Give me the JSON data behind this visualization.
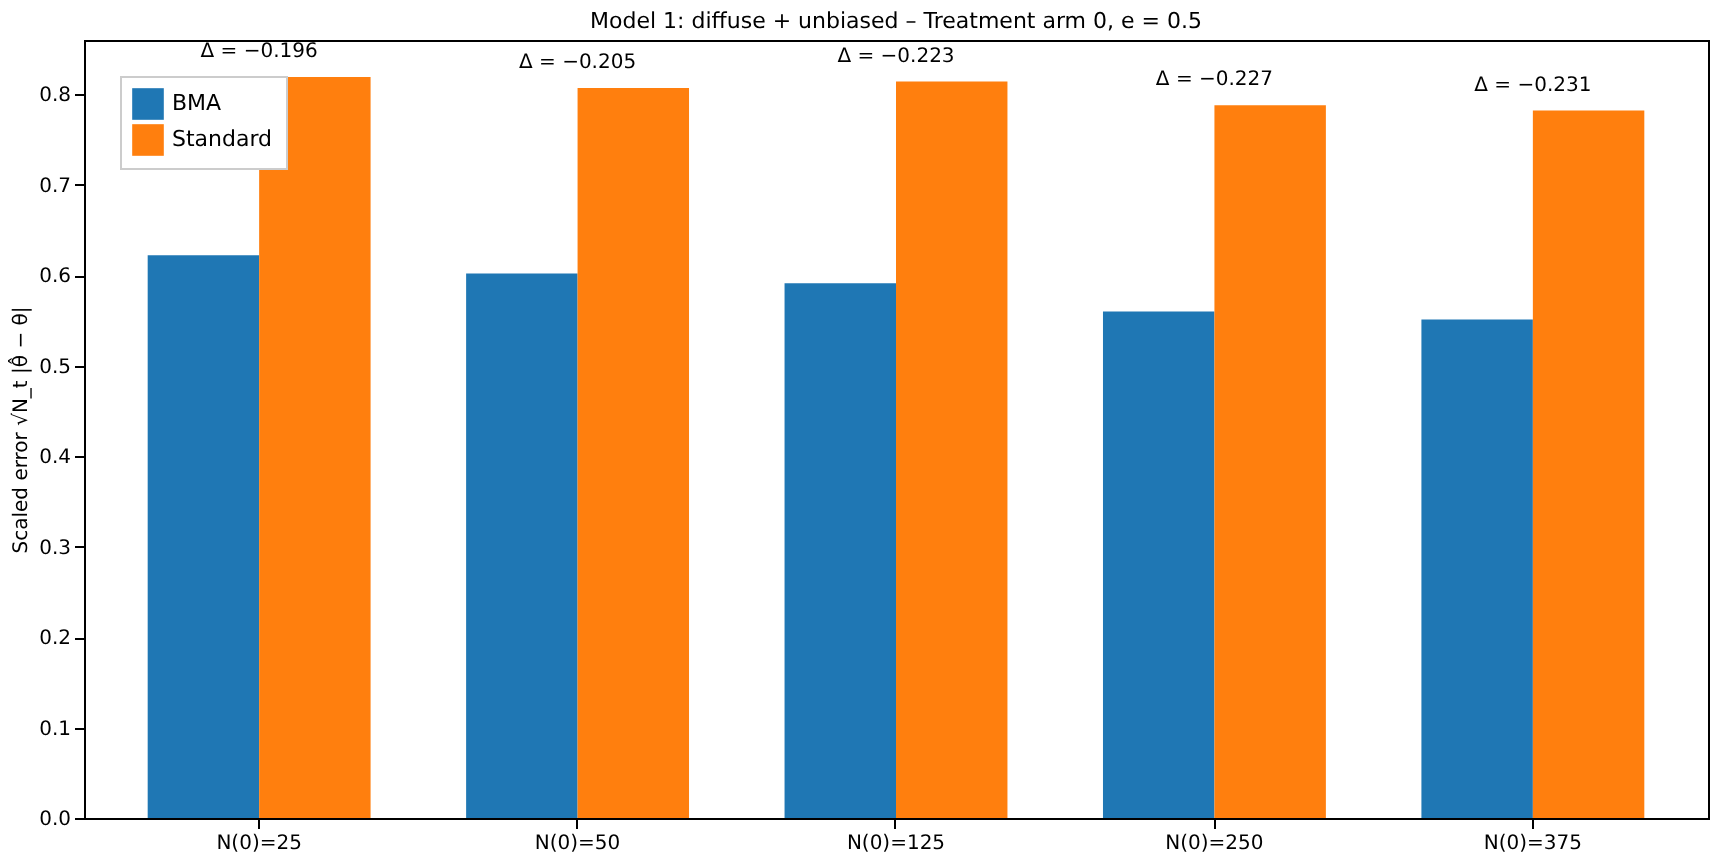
{
  "chart_data": {
    "type": "bar",
    "title": "Model 1: diffuse + unbiased – Treatment arm 0, e = 0.5",
    "ylabel": "Scaled error √N_t |θ̂ − θ|",
    "categories": [
      "N(0)=25",
      "N(0)=50",
      "N(0)=125",
      "N(0)=250",
      "N(0)=375"
    ],
    "series": [
      {
        "name": "BMA",
        "color": "#1f77b4",
        "values": [
          0.622,
          0.602,
          0.591,
          0.56,
          0.551
        ]
      },
      {
        "name": "Standard",
        "color": "#ff7f0e",
        "values": [
          0.819,
          0.807,
          0.814,
          0.788,
          0.782
        ]
      }
    ],
    "ylim": [
      0,
      0.86
    ],
    "yticks": [
      {
        "value": 0,
        "label": "0.0"
      },
      {
        "value": 0.1,
        "label": "0.1"
      },
      {
        "value": 0.2,
        "label": "0.2"
      },
      {
        "value": 0.3,
        "label": "0.3"
      },
      {
        "value": 0.4,
        "label": "0.4"
      },
      {
        "value": 0.5,
        "label": "0.5"
      },
      {
        "value": 0.6,
        "label": "0.6"
      },
      {
        "value": 0.7,
        "label": "0.7"
      },
      {
        "value": 0.8,
        "label": "0.8"
      }
    ],
    "annotations": [
      "Δ = −0.196",
      "Δ = −0.205",
      "Δ = −0.223",
      "Δ = −0.227",
      "Δ = −0.231"
    ],
    "grid": false,
    "legend": "top left"
  }
}
